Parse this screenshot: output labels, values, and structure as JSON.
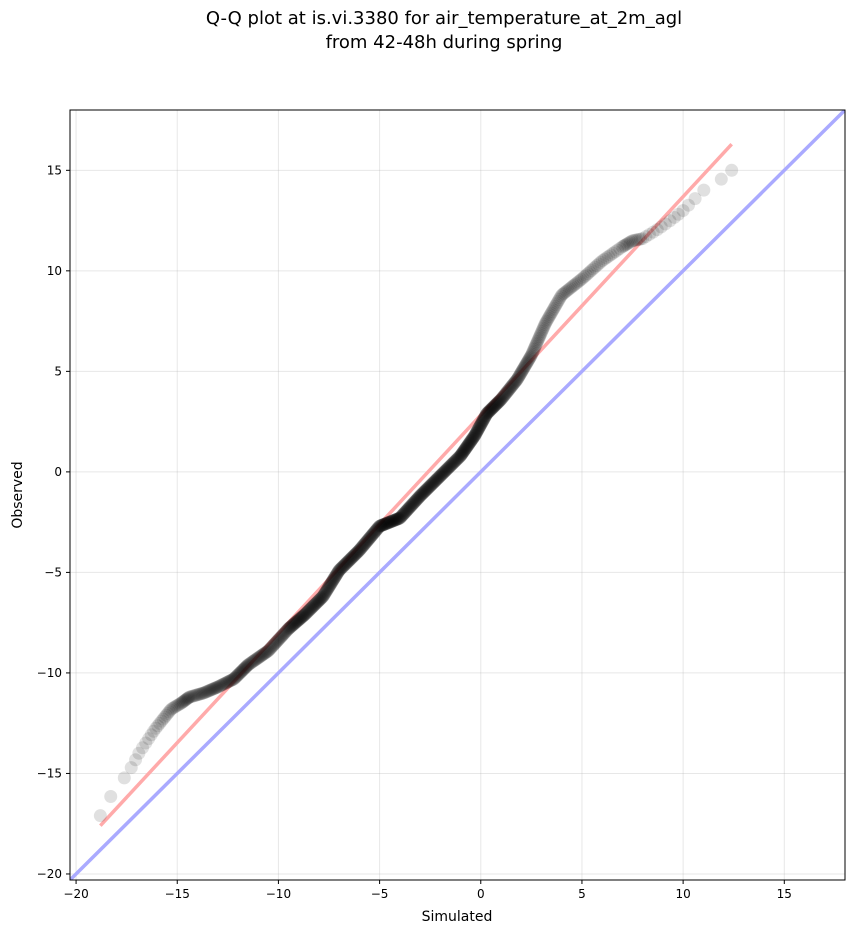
{
  "chart_data": {
    "type": "scatter",
    "title_line1": "Q-Q plot at is.vi.3380 for air_temperature_at_2m_agl",
    "title_line2": "from 42-48h during spring",
    "xlabel": "Simulated",
    "ylabel": "Observed",
    "xlim": [
      -20.3,
      18.0
    ],
    "ylim": [
      -20.3,
      18.0
    ],
    "xticks": [
      -20,
      -15,
      -10,
      -5,
      0,
      5,
      10,
      15
    ],
    "yticks": [
      -20,
      -15,
      -10,
      -5,
      0,
      5,
      10,
      15
    ],
    "xtick_labels": [
      "−20",
      "−15",
      "−10",
      "−5",
      "0",
      "5",
      "10",
      "15"
    ],
    "ytick_labels": [
      "−20",
      "−15",
      "−10",
      "−5",
      "0",
      "5",
      "10",
      "15"
    ],
    "grid": true,
    "reference_lines": [
      {
        "name": "identity",
        "color": "#aaaaff",
        "x": [
          -20.3,
          18.0
        ],
        "y": [
          -20.3,
          18.0
        ]
      },
      {
        "name": "fit",
        "color": "#ffaaaa",
        "x": [
          -18.8,
          12.4
        ],
        "y": [
          -17.6,
          16.3
        ]
      }
    ],
    "point_color": "#000000",
    "quantile_curve_x": [
      -18.8,
      -18.1,
      -17.6,
      -17.2,
      -16.9,
      -16.5,
      -16.1,
      -15.7,
      -15.3,
      -14.8,
      -14.4,
      -13.7,
      -13.0,
      -12.2,
      -11.5,
      -10.5,
      -9.5,
      -8.7,
      -7.8,
      -7.0,
      -6.0,
      -5.0,
      -4.0,
      -3.0,
      -2.0,
      -1.0,
      -0.3,
      0.3,
      1.0,
      1.8,
      2.5,
      3.2,
      4.0,
      5.0,
      6.0,
      7.0,
      7.5,
      8.0,
      8.8,
      9.5,
      10.0,
      10.5,
      11.0,
      11.7,
      12.4
    ],
    "quantile_curve_y": [
      -17.1,
      -15.8,
      -15.2,
      -14.6,
      -14.0,
      -13.4,
      -12.8,
      -12.3,
      -11.8,
      -11.5,
      -11.2,
      -11.0,
      -10.7,
      -10.3,
      -9.6,
      -8.9,
      -7.8,
      -7.1,
      -6.2,
      -4.9,
      -3.9,
      -2.7,
      -2.3,
      -1.2,
      -0.2,
      0.8,
      1.8,
      2.9,
      3.6,
      4.6,
      5.8,
      7.4,
      8.8,
      9.6,
      10.5,
      11.2,
      11.5,
      11.6,
      12.1,
      12.6,
      13.0,
      13.5,
      14.0,
      14.4,
      15.0
    ],
    "n_points": 700
  }
}
